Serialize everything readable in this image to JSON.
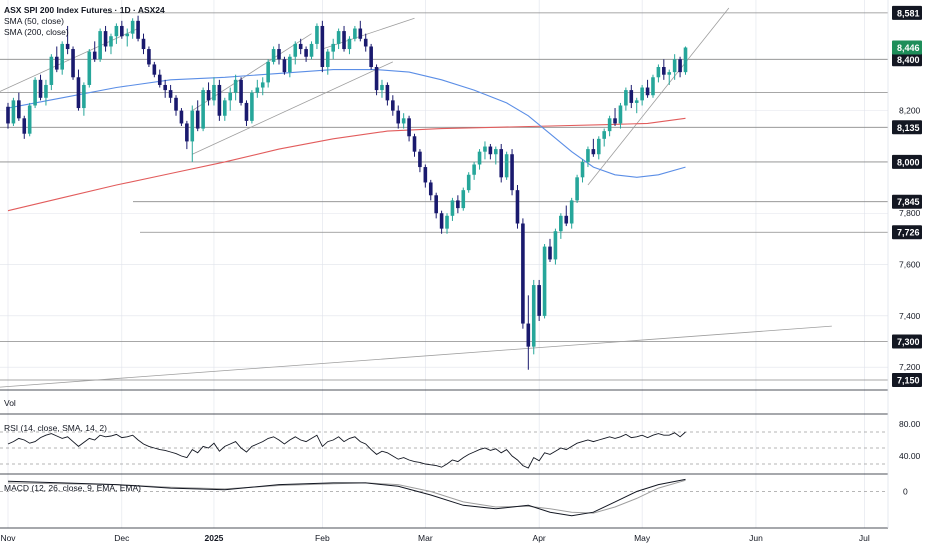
{
  "chart_data": {
    "type": "candlestick",
    "title": "ASX SPI 200 Index Futures · 1D · ASX24",
    "indicators": [
      "SMA (50, close)",
      "SMA (200, close)"
    ],
    "colors": {
      "up": "#26a69a",
      "down": "#1a1a6e",
      "sma50": "#5b8ee6",
      "sma200": "#e25c5c",
      "grid": "#e0e3eb",
      "level_line": "#8a8a8a",
      "label_bg": "#131722",
      "label_up_bg": "#1e8e5a",
      "macd_line": "#131722",
      "signal_line": "#9e9e9e",
      "rsi_line": "#131722"
    },
    "ylim": [
      7150,
      8600
    ],
    "y_ticks": [
      7200,
      7400,
      7600,
      7800,
      8000,
      8200,
      8400
    ],
    "y_tick_labels": [
      "7,200",
      "7,400",
      "7,600",
      "7,800",
      "8,000",
      "8,200",
      "8,400"
    ],
    "levels": [
      {
        "value": 8581,
        "label": "8,581",
        "start_x": 105
      },
      {
        "value": 8400,
        "label": "8,400",
        "start_x": 0
      },
      {
        "value": 8270,
        "label": "",
        "start_x": 0
      },
      {
        "value": 8135,
        "label": "8,135",
        "start_x": 0
      },
      {
        "value": 8000,
        "label": "8,000",
        "start_x": 0
      },
      {
        "value": 7845,
        "label": "7,845",
        "start_x": 133
      },
      {
        "value": 7726,
        "label": "7,726",
        "start_x": 140
      },
      {
        "value": 7300,
        "label": "7,300",
        "start_x": 0
      },
      {
        "value": 7150,
        "label": "7,150",
        "start_x": 0
      }
    ],
    "price_label": {
      "value": 8446,
      "label": "8,446"
    },
    "x_labels": [
      {
        "index": 0,
        "label": "Nov"
      },
      {
        "index": 21,
        "label": "Dec"
      },
      {
        "index": 38,
        "label": "2025"
      },
      {
        "index": 58,
        "label": "Feb"
      },
      {
        "index": 77,
        "label": "Mar"
      },
      {
        "index": 98,
        "label": "Apr"
      },
      {
        "index": 117,
        "label": "May"
      },
      {
        "index": 138,
        "label": "Jun"
      },
      {
        "index": 158,
        "label": "Jul"
      }
    ],
    "candles": [
      [
        8215,
        8230,
        8130,
        8150
      ],
      [
        8150,
        8250,
        8140,
        8240
      ],
      [
        8240,
        8270,
        8160,
        8170
      ],
      [
        8170,
        8180,
        8090,
        8110
      ],
      [
        8110,
        8230,
        8100,
        8220
      ],
      [
        8220,
        8330,
        8210,
        8320
      ],
      [
        8320,
        8340,
        8240,
        8250
      ],
      [
        8250,
        8320,
        8220,
        8300
      ],
      [
        8300,
        8420,
        8280,
        8410
      ],
      [
        8410,
        8450,
        8350,
        8360
      ],
      [
        8360,
        8470,
        8340,
        8460
      ],
      [
        8460,
        8530,
        8420,
        8440
      ],
      [
        8440,
        8450,
        8320,
        8330
      ],
      [
        8330,
        8360,
        8200,
        8210
      ],
      [
        8210,
        8310,
        8180,
        8300
      ],
      [
        8300,
        8440,
        8290,
        8430
      ],
      [
        8430,
        8470,
        8390,
        8400
      ],
      [
        8400,
        8520,
        8390,
        8510
      ],
      [
        8510,
        8530,
        8430,
        8450
      ],
      [
        8450,
        8500,
        8420,
        8490
      ],
      [
        8490,
        8540,
        8460,
        8530
      ],
      [
        8530,
        8550,
        8480,
        8490
      ],
      [
        8490,
        8520,
        8450,
        8500
      ],
      [
        8500,
        8560,
        8480,
        8550
      ],
      [
        8550,
        8570,
        8470,
        8480
      ],
      [
        8480,
        8500,
        8420,
        8440
      ],
      [
        8440,
        8450,
        8370,
        8380
      ],
      [
        8380,
        8390,
        8330,
        8340
      ],
      [
        8340,
        8360,
        8290,
        8300
      ],
      [
        8300,
        8320,
        8250,
        8280
      ],
      [
        8280,
        8300,
        8230,
        8250
      ],
      [
        8250,
        8260,
        8180,
        8200
      ],
      [
        8200,
        8210,
        8140,
        8150
      ],
      [
        8150,
        8160,
        8050,
        8080
      ],
      [
        8080,
        8220,
        8000,
        8200
      ],
      [
        8200,
        8240,
        8120,
        8130
      ],
      [
        8130,
        8290,
        8120,
        8280
      ],
      [
        8280,
        8310,
        8220,
        8240
      ],
      [
        8240,
        8330,
        8220,
        8300
      ],
      [
        8300,
        8320,
        8160,
        8180
      ],
      [
        8180,
        8250,
        8160,
        8240
      ],
      [
        8240,
        8290,
        8200,
        8270
      ],
      [
        8270,
        8340,
        8240,
        8320
      ],
      [
        8320,
        8330,
        8220,
        8230
      ],
      [
        8230,
        8240,
        8140,
        8160
      ],
      [
        8160,
        8280,
        8150,
        8270
      ],
      [
        8270,
        8320,
        8250,
        8290
      ],
      [
        8290,
        8330,
        8260,
        8310
      ],
      [
        8310,
        8400,
        8290,
        8390
      ],
      [
        8390,
        8450,
        8380,
        8440
      ],
      [
        8440,
        8460,
        8380,
        8400
      ],
      [
        8400,
        8410,
        8340,
        8350
      ],
      [
        8350,
        8420,
        8330,
        8410
      ],
      [
        8410,
        8470,
        8380,
        8460
      ],
      [
        8460,
        8480,
        8420,
        8440
      ],
      [
        8440,
        8450,
        8390,
        8410
      ],
      [
        8410,
        8470,
        8400,
        8460
      ],
      [
        8460,
        8540,
        8440,
        8530
      ],
      [
        8530,
        8550,
        8350,
        8370
      ],
      [
        8370,
        8440,
        8340,
        8430
      ],
      [
        8430,
        8480,
        8400,
        8460
      ],
      [
        8460,
        8520,
        8440,
        8510
      ],
      [
        8510,
        8530,
        8430,
        8440
      ],
      [
        8440,
        8490,
        8420,
        8480
      ],
      [
        8480,
        8530,
        8470,
        8520
      ],
      [
        8520,
        8550,
        8470,
        8480
      ],
      [
        8480,
        8500,
        8430,
        8450
      ],
      [
        8450,
        8460,
        8360,
        8370
      ],
      [
        8370,
        8380,
        8260,
        8280
      ],
      [
        8280,
        8320,
        8250,
        8300
      ],
      [
        8300,
        8310,
        8220,
        8240
      ],
      [
        8240,
        8260,
        8180,
        8200
      ],
      [
        8200,
        8220,
        8130,
        8150
      ],
      [
        8150,
        8190,
        8130,
        8170
      ],
      [
        8170,
        8180,
        8080,
        8100
      ],
      [
        8100,
        8110,
        8020,
        8040
      ],
      [
        8040,
        8050,
        7960,
        7980
      ],
      [
        7980,
        7990,
        7900,
        7920
      ],
      [
        7920,
        7930,
        7850,
        7870
      ],
      [
        7870,
        7880,
        7780,
        7800
      ],
      [
        7800,
        7810,
        7720,
        7740
      ],
      [
        7740,
        7800,
        7720,
        7790
      ],
      [
        7790,
        7860,
        7770,
        7850
      ],
      [
        7850,
        7870,
        7800,
        7820
      ],
      [
        7820,
        7900,
        7810,
        7890
      ],
      [
        7890,
        7960,
        7880,
        7950
      ],
      [
        7950,
        8000,
        7930,
        7990
      ],
      [
        7990,
        8050,
        7970,
        8040
      ],
      [
        8040,
        8080,
        8010,
        8060
      ],
      [
        8060,
        8070,
        8010,
        8030
      ],
      [
        8030,
        8060,
        7990,
        8050
      ],
      [
        8050,
        8070,
        7920,
        7940
      ],
      [
        7940,
        8040,
        7930,
        8030
      ],
      [
        8030,
        8050,
        7870,
        7890
      ],
      [
        7890,
        7910,
        7740,
        7760
      ],
      [
        7760,
        7780,
        7350,
        7370
      ],
      [
        7370,
        7480,
        7190,
        7280
      ],
      [
        7280,
        7540,
        7250,
        7520
      ],
      [
        7520,
        7540,
        7380,
        7400
      ],
      [
        7400,
        7680,
        7390,
        7670
      ],
      [
        7670,
        7700,
        7610,
        7620
      ],
      [
        7620,
        7740,
        7600,
        7730
      ],
      [
        7730,
        7800,
        7700,
        7790
      ],
      [
        7790,
        7830,
        7750,
        7760
      ],
      [
        7760,
        7860,
        7740,
        7850
      ],
      [
        7850,
        7950,
        7840,
        7940
      ],
      [
        7940,
        8010,
        7920,
        8000
      ],
      [
        8000,
        8060,
        7980,
        8050
      ],
      [
        8050,
        8090,
        8020,
        8030
      ],
      [
        8030,
        8100,
        8010,
        8090
      ],
      [
        8090,
        8130,
        8060,
        8120
      ],
      [
        8120,
        8180,
        8100,
        8170
      ],
      [
        8170,
        8210,
        8140,
        8150
      ],
      [
        8150,
        8230,
        8130,
        8220
      ],
      [
        8220,
        8290,
        8200,
        8280
      ],
      [
        8280,
        8300,
        8210,
        8230
      ],
      [
        8230,
        8250,
        8190,
        8240
      ],
      [
        8240,
        8300,
        8220,
        8290
      ],
      [
        8290,
        8320,
        8250,
        8260
      ],
      [
        8260,
        8340,
        8250,
        8330
      ],
      [
        8330,
        8380,
        8310,
        8370
      ],
      [
        8370,
        8400,
        8320,
        8340
      ],
      [
        8340,
        8360,
        8300,
        8350
      ],
      [
        8350,
        8420,
        8320,
        8400
      ],
      [
        8400,
        8410,
        8330,
        8350
      ],
      [
        8350,
        8450,
        8340,
        8446
      ]
    ],
    "sma50": [
      [
        0,
        8210
      ],
      [
        10,
        8250
      ],
      [
        20,
        8290
      ],
      [
        30,
        8320
      ],
      [
        40,
        8330
      ],
      [
        50,
        8345
      ],
      [
        60,
        8360
      ],
      [
        68,
        8360
      ],
      [
        74,
        8350
      ],
      [
        80,
        8320
      ],
      [
        86,
        8280
      ],
      [
        92,
        8230
      ],
      [
        96,
        8180
      ],
      [
        100,
        8110
      ],
      [
        104,
        8040
      ],
      [
        108,
        7980
      ],
      [
        112,
        7950
      ],
      [
        116,
        7940
      ],
      [
        120,
        7950
      ],
      [
        125,
        7980
      ]
    ],
    "sma200": [
      [
        0,
        7810
      ],
      [
        10,
        7860
      ],
      [
        20,
        7910
      ],
      [
        30,
        7955
      ],
      [
        40,
        8000
      ],
      [
        50,
        8050
      ],
      [
        60,
        8090
      ],
      [
        70,
        8120
      ],
      [
        80,
        8130
      ],
      [
        90,
        8135
      ],
      [
        100,
        8140
      ],
      [
        110,
        8145
      ],
      [
        118,
        8150
      ],
      [
        125,
        8170
      ]
    ],
    "trend_lines": [
      [
        [
          -3,
          8260
        ],
        [
          24,
          8520
        ]
      ],
      [
        [
          34,
          8030
        ],
        [
          71,
          8390
        ]
      ],
      [
        [
          34,
          8200
        ],
        [
          56,
          8500
        ]
      ],
      [
        [
          58,
          8440
        ],
        [
          75,
          8560
        ]
      ],
      [
        [
          107,
          7910
        ],
        [
          133,
          8600
        ]
      ],
      [
        [
          -3,
          7120
        ],
        [
          152,
          7360
        ]
      ]
    ],
    "panes": {
      "volume": {
        "label": "Vol"
      },
      "rsi": {
        "label": "RSI (14, close, SMA, 14, 2)",
        "tick_labels": [
          "80.00",
          "40.00"
        ],
        "ylim": [
          20,
          90
        ],
        "bands": [
          70,
          50,
          30
        ],
        "values": [
          55,
          58,
          62,
          60,
          56,
          58,
          63,
          66,
          68,
          65,
          62,
          64,
          58,
          52,
          57,
          62,
          60,
          66,
          64,
          65,
          67,
          63,
          64,
          66,
          60,
          55,
          52,
          50,
          48,
          47,
          45,
          43,
          40,
          38,
          48,
          44,
          52,
          50,
          56,
          46,
          52,
          55,
          58,
          50,
          45,
          52,
          55,
          58,
          62,
          64,
          60,
          55,
          60,
          64,
          60,
          58,
          62,
          66,
          52,
          58,
          60,
          64,
          58,
          62,
          64,
          58,
          55,
          48,
          42,
          46,
          44,
          40,
          36,
          38,
          35,
          33,
          32,
          30,
          29,
          28,
          26,
          30,
          35,
          33,
          38,
          42,
          45,
          48,
          50,
          47,
          49,
          44,
          48,
          40,
          35,
          28,
          25,
          38,
          34,
          44,
          42,
          46,
          50,
          48,
          52,
          56,
          58,
          60,
          58,
          60,
          62,
          64,
          62,
          64,
          67,
          63,
          64,
          66,
          63,
          66,
          68,
          66,
          66,
          69,
          64,
          70
        ]
      },
      "macd": {
        "label": "MACD (12, 26, close, 9, EMA, EMA)",
        "tick_labels": [
          "0"
        ],
        "ylim": [
          -200,
          90
        ],
        "macd_line": [
          [
            0,
            60
          ],
          [
            10,
            50
          ],
          [
            20,
            40
          ],
          [
            30,
            20
          ],
          [
            40,
            10
          ],
          [
            50,
            40
          ],
          [
            60,
            50
          ],
          [
            66,
            50
          ],
          [
            72,
            30
          ],
          [
            78,
            -20
          ],
          [
            84,
            -80
          ],
          [
            90,
            -100
          ],
          [
            96,
            -80
          ],
          [
            100,
            -120
          ],
          [
            104,
            -140
          ],
          [
            108,
            -120
          ],
          [
            112,
            -60
          ],
          [
            116,
            0
          ],
          [
            120,
            40
          ],
          [
            125,
            70
          ]
        ],
        "signal_line": [
          [
            0,
            50
          ],
          [
            10,
            45
          ],
          [
            20,
            40
          ],
          [
            30,
            25
          ],
          [
            40,
            15
          ],
          [
            50,
            35
          ],
          [
            60,
            45
          ],
          [
            66,
            50
          ],
          [
            72,
            40
          ],
          [
            78,
            0
          ],
          [
            84,
            -60
          ],
          [
            90,
            -90
          ],
          [
            96,
            -85
          ],
          [
            100,
            -100
          ],
          [
            104,
            -120
          ],
          [
            108,
            -125
          ],
          [
            112,
            -90
          ],
          [
            116,
            -40
          ],
          [
            120,
            20
          ],
          [
            125,
            65
          ]
        ]
      }
    }
  }
}
